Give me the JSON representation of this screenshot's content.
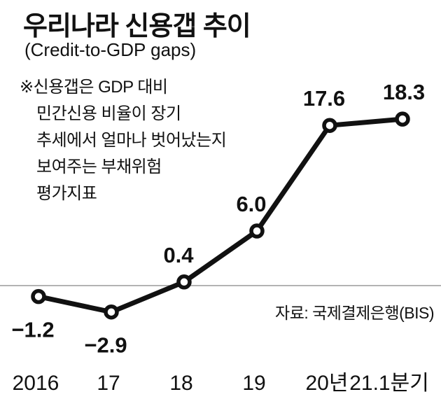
{
  "title": "우리나라 신용갭 추이",
  "subtitle": "(Credit-to-GDP gaps)",
  "annotation": {
    "lines": [
      "※신용갭은 GDP 대비",
      "민간신용 비율이 장기",
      "추세에서 얼마나 벗어났는지",
      "보여주는 부채위험",
      "평가지표"
    ]
  },
  "source": "자료: 국제결제은행(BIS)",
  "colors": {
    "line": "#111111",
    "text": "#111111",
    "axis": "#9a9a9a",
    "background": "#ffffff"
  },
  "chart_data": {
    "type": "line",
    "title": "우리나라 신용갭 추이 (Credit-to-GDP gaps)",
    "categories": [
      "2016",
      "17",
      "18",
      "19",
      "20년",
      "21.1분기"
    ],
    "values": [
      -1.2,
      -2.9,
      0.4,
      6.0,
      17.6,
      18.3
    ],
    "labels": [
      "−1.2",
      "−2.9",
      "0.4",
      "6.0",
      "17.6",
      "18.3"
    ],
    "ylim": [
      -5,
      22
    ],
    "zero_line": true,
    "grid": false,
    "legend": false,
    "source": "자료: 국제결제은행(BIS)"
  }
}
